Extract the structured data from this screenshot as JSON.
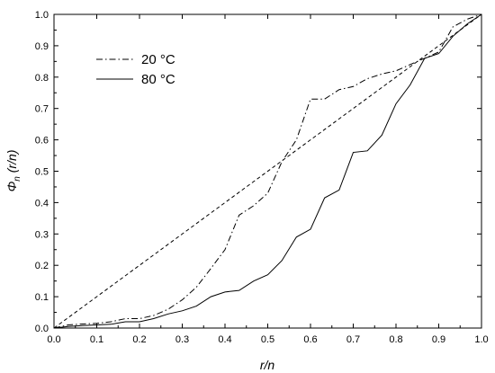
{
  "chart_data": {
    "type": "line",
    "xlabel": "r/n",
    "ylabel": "Φn (r/n)",
    "ylabel_main": "Φ",
    "ylabel_sub": "n",
    "ylabel_rest": " (r/n)",
    "xlim": [
      0.0,
      1.0
    ],
    "ylim": [
      0.0,
      1.0
    ],
    "x_ticks": [
      "0.0",
      "0.1",
      "0.2",
      "0.3",
      "0.4",
      "0.5",
      "0.6",
      "0.7",
      "0.8",
      "0.9",
      "1.0"
    ],
    "y_ticks": [
      "0.0",
      "0.1",
      "0.2",
      "0.3",
      "0.4",
      "0.5",
      "0.6",
      "0.7",
      "0.8",
      "0.9",
      "1.0"
    ],
    "x_tick_values": [
      0.0,
      0.1,
      0.2,
      0.3,
      0.4,
      0.5,
      0.6,
      0.7,
      0.8,
      0.9,
      1.0
    ],
    "y_tick_values": [
      0.0,
      0.1,
      0.2,
      0.3,
      0.4,
      0.5,
      0.6,
      0.7,
      0.8,
      0.9,
      1.0
    ],
    "grid": false,
    "legend_position": "top-left",
    "series": [
      {
        "name": "20 °C",
        "style": "dash-dot",
        "color": "#000000",
        "points": [
          [
            0.0,
            0.0
          ],
          [
            0.033,
            0.01
          ],
          [
            0.067,
            0.013
          ],
          [
            0.1,
            0.015
          ],
          [
            0.133,
            0.02
          ],
          [
            0.167,
            0.03
          ],
          [
            0.2,
            0.03
          ],
          [
            0.233,
            0.04
          ],
          [
            0.267,
            0.06
          ],
          [
            0.3,
            0.09
          ],
          [
            0.333,
            0.13
          ],
          [
            0.367,
            0.19
          ],
          [
            0.4,
            0.25
          ],
          [
            0.433,
            0.36
          ],
          [
            0.467,
            0.39
          ],
          [
            0.5,
            0.43
          ],
          [
            0.533,
            0.53
          ],
          [
            0.567,
            0.6
          ],
          [
            0.6,
            0.73
          ],
          [
            0.633,
            0.73
          ],
          [
            0.667,
            0.76
          ],
          [
            0.7,
            0.77
          ],
          [
            0.733,
            0.795
          ],
          [
            0.767,
            0.81
          ],
          [
            0.8,
            0.82
          ],
          [
            0.833,
            0.84
          ],
          [
            0.867,
            0.86
          ],
          [
            0.9,
            0.88
          ],
          [
            0.933,
            0.96
          ],
          [
            0.967,
            0.985
          ],
          [
            1.0,
            1.0
          ]
        ]
      },
      {
        "name": "80 °C",
        "style": "solid",
        "color": "#000000",
        "points": [
          [
            0.0,
            0.0
          ],
          [
            0.033,
            0.005
          ],
          [
            0.067,
            0.008
          ],
          [
            0.1,
            0.01
          ],
          [
            0.133,
            0.012
          ],
          [
            0.167,
            0.02
          ],
          [
            0.2,
            0.02
          ],
          [
            0.233,
            0.03
          ],
          [
            0.267,
            0.045
          ],
          [
            0.3,
            0.055
          ],
          [
            0.333,
            0.07
          ],
          [
            0.367,
            0.1
          ],
          [
            0.4,
            0.115
          ],
          [
            0.433,
            0.12
          ],
          [
            0.467,
            0.15
          ],
          [
            0.5,
            0.17
          ],
          [
            0.533,
            0.215
          ],
          [
            0.567,
            0.29
          ],
          [
            0.6,
            0.315
          ],
          [
            0.633,
            0.415
          ],
          [
            0.667,
            0.44
          ],
          [
            0.7,
            0.56
          ],
          [
            0.733,
            0.565
          ],
          [
            0.767,
            0.615
          ],
          [
            0.8,
            0.715
          ],
          [
            0.833,
            0.775
          ],
          [
            0.867,
            0.86
          ],
          [
            0.9,
            0.875
          ],
          [
            0.933,
            0.93
          ],
          [
            0.967,
            0.97
          ],
          [
            1.0,
            1.0
          ]
        ]
      },
      {
        "name": "",
        "style": "dashed",
        "color": "#000000",
        "points": [
          [
            0.0,
            0.0
          ],
          [
            1.0,
            1.0
          ]
        ]
      }
    ]
  }
}
